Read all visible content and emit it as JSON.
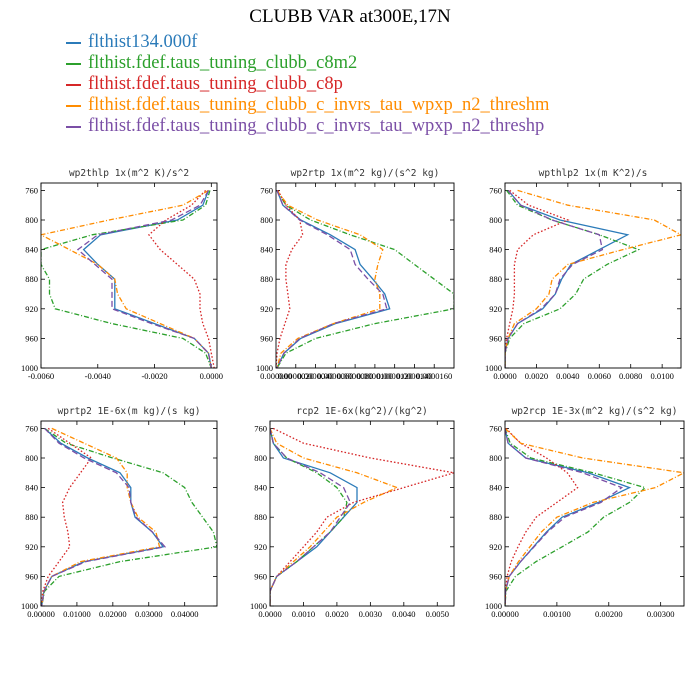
{
  "title": "CLUBB VAR at300E,17N",
  "colors": [
    "#2b7bb9",
    "#2ca02c",
    "#d62728",
    "#ff8c00",
    "#7b4fa6"
  ],
  "legend": [
    {
      "label": "flthist134.000f",
      "color": "#2b7bb9",
      "dash": ""
    },
    {
      "label": "flthist.fdef.taus_tuning_clubb_c8m2",
      "color": "#2ca02c",
      "dash": "5,2,1,2"
    },
    {
      "label": "flthist.fdef.taus_tuning_clubb_c8p",
      "color": "#d62728",
      "dash": "1.6,2"
    },
    {
      "label": "flthist.fdef.taus_tuning_clubb_c_invrs_tau_wpxp_n2_threshm",
      "color": "#ff8c00",
      "dash": "5,2,1,2"
    },
    {
      "label": "flthist.fdef.taus_tuning_clubb_c_invrs_tau_wpxp_n2_threshp",
      "color": "#7b4fa6",
      "dash": "6,3"
    }
  ],
  "chart_data": [
    {
      "type": "line",
      "title": "wp2thlp  1x(m^2 K)/s^2",
      "xlim": [
        -0.006,
        0.0002
      ],
      "xticks": [
        -0.006,
        -0.004,
        -0.002,
        0.0
      ],
      "xtick_labels": [
        "-0.0060",
        "-0.0040",
        "-0.0020",
        "0.0000"
      ],
      "ylim": [
        1000,
        750
      ],
      "yticks": [
        760,
        800,
        840,
        880,
        920,
        960,
        1000
      ],
      "y": [
        760,
        780,
        800,
        820,
        840,
        860,
        880,
        900,
        920,
        940,
        960,
        980,
        1000
      ],
      "series": [
        {
          "values": [
            -0.0001,
            -0.0003,
            -0.0012,
            -0.0039,
            -0.0045,
            -0.004,
            -0.0034,
            -0.0034,
            -0.0034,
            -0.002,
            -0.0006,
            -0.0001,
            0.0
          ]
        },
        {
          "values": [
            -5e-05,
            -0.0002,
            -0.001,
            -0.0042,
            -0.006,
            -0.006,
            -0.0057,
            -0.0057,
            -0.0055,
            -0.0035,
            -0.001,
            -0.0002,
            0.0
          ]
        },
        {
          "values": [
            -0.0002,
            -0.0007,
            -0.0016,
            -0.0022,
            -0.0018,
            -0.0012,
            -0.0006,
            -0.0004,
            -0.0004,
            -0.0003,
            -0.0001,
            0.0,
            0.0001
          ]
        },
        {
          "values": [
            -0.0001,
            -0.001,
            -0.0036,
            -0.006,
            -0.005,
            -0.004,
            -0.0034,
            -0.0033,
            -0.003,
            -0.0018,
            -0.0006,
            -0.0001,
            0.0
          ]
        },
        {
          "values": [
            -0.0001,
            -0.0004,
            -0.0014,
            -0.004,
            -0.0047,
            -0.0041,
            -0.0035,
            -0.0035,
            -0.0035,
            -0.0021,
            -0.0006,
            -0.0001,
            0.0
          ]
        }
      ]
    },
    {
      "type": "line",
      "title": "wp2rtp  1x(m^2 kg)/(s^2 kg)",
      "xlim": [
        0,
        1.8e-05
      ],
      "xticks": [
        0,
        2e-06,
        4e-06,
        6e-06,
        8e-06,
        1e-05,
        1.2e-05,
        1.4e-05,
        1.6e-05
      ],
      "xtick_labels": [
        "0.000000",
        "0.0000020",
        "0.0000040",
        "0.0000060",
        "0.0000080",
        "0.0000100",
        "0.0000120",
        "0.0000140",
        "0.0000160"
      ],
      "ylim": [
        1000,
        750
      ],
      "yticks": [
        760,
        800,
        840,
        880,
        920,
        960,
        1000
      ],
      "y": [
        760,
        780,
        800,
        820,
        840,
        860,
        880,
        900,
        920,
        940,
        960,
        980,
        1000
      ],
      "series": [
        {
          "values": [
            1e-07,
            7e-07,
            2.5e-06,
            5.5e-06,
            8e-06,
            8.5e-06,
            9.8e-06,
            1.1e-05,
            1.15e-05,
            6e-06,
            2.5e-06,
            8e-07,
            1e-07
          ]
        },
        {
          "values": [
            1e-07,
            1e-06,
            3.5e-06,
            7.5e-06,
            1.2e-05,
            1.4e-05,
            1.6e-05,
            1.8e-05,
            1.8e-05,
            1e-05,
            4e-06,
            1e-06,
            1e-07
          ]
        },
        {
          "values": [
            2e-07,
            1e-06,
            2.4e-06,
            2.7e-06,
            1.6e-06,
            1e-06,
            1e-06,
            1.2e-06,
            1.4e-06,
            9e-07,
            4e-07,
            1e-07,
            0.0
          ]
        },
        {
          "values": [
            1e-07,
            1.2e-06,
            4.2e-06,
            8.5e-06,
            1.08e-05,
            1.03e-05,
            1e-05,
            1.05e-05,
            1.05e-05,
            5.8e-06,
            2.2e-06,
            5e-07,
            1e-07
          ]
        },
        {
          "values": [
            1e-07,
            7e-07,
            2.4e-06,
            5.2e-06,
            7.5e-06,
            8e-06,
            9.3e-06,
            1.08e-05,
            1.12e-05,
            5.8e-06,
            2.4e-06,
            8e-07,
            1e-07
          ]
        }
      ]
    },
    {
      "type": "line",
      "title": "wpthlp2  1x(m K^2)/s",
      "xlim": [
        0,
        0.0112
      ],
      "xticks": [
        0,
        0.002,
        0.004,
        0.006,
        0.008,
        0.01
      ],
      "xtick_labels": [
        "0.0000",
        "0.0020",
        "0.0040",
        "0.0060",
        "0.0080",
        "0.0100"
      ],
      "ylim": [
        1000,
        750
      ],
      "yticks": [
        760,
        800,
        840,
        880,
        920,
        960,
        1000
      ],
      "y": [
        760,
        780,
        800,
        820,
        840,
        860,
        880,
        900,
        920,
        940,
        960,
        980,
        1000
      ],
      "series": [
        {
          "values": [
            0.0002,
            0.001,
            0.0035,
            0.0078,
            0.006,
            0.0042,
            0.0036,
            0.0032,
            0.0024,
            0.0008,
            0.0002,
            0.0,
            0.0
          ]
        },
        {
          "values": [
            0.0001,
            0.0008,
            0.003,
            0.006,
            0.0085,
            0.0065,
            0.005,
            0.0045,
            0.0035,
            0.0012,
            0.0003,
            0.0,
            0.0
          ]
        },
        {
          "values": [
            0.0003,
            0.0015,
            0.004,
            0.0018,
            0.0008,
            0.0006,
            0.0006,
            0.0006,
            0.0005,
            0.0003,
            0.0001,
            0.0,
            0.0
          ]
        },
        {
          "values": [
            0.0008,
            0.004,
            0.0095,
            0.0112,
            0.0075,
            0.004,
            0.003,
            0.0028,
            0.002,
            0.0006,
            0.0002,
            0.0,
            0.0
          ]
        },
        {
          "values": [
            0.0002,
            0.001,
            0.003,
            0.006,
            0.0062,
            0.0043,
            0.0035,
            0.0032,
            0.0023,
            0.0008,
            0.0002,
            0.0,
            0.0
          ]
        }
      ]
    },
    {
      "type": "line",
      "title": "wprtp2  1E-6x(m kg)/(s kg)",
      "xlim": [
        0,
        0.049
      ],
      "xticks": [
        0,
        0.01,
        0.02,
        0.03,
        0.04
      ],
      "xtick_labels": [
        "0.00000",
        "0.01000",
        "0.02000",
        "0.03000",
        "0.04000"
      ],
      "ylim": [
        1000,
        750
      ],
      "yticks": [
        760,
        800,
        840,
        880,
        920,
        960,
        1000
      ],
      "y": [
        760,
        780,
        800,
        820,
        840,
        860,
        880,
        900,
        920,
        940,
        960,
        980,
        1000
      ],
      "series": [
        {
          "values": [
            0.001,
            0.0055,
            0.013,
            0.022,
            0.025,
            0.025,
            0.0262,
            0.031,
            0.034,
            0.012,
            0.003,
            0.0008,
            0.0002
          ]
        },
        {
          "values": [
            0.001,
            0.007,
            0.02,
            0.034,
            0.04,
            0.042,
            0.045,
            0.048,
            0.049,
            0.022,
            0.005,
            0.001,
            0.0002
          ]
        },
        {
          "values": [
            0.002,
            0.008,
            0.014,
            0.011,
            0.008,
            0.006,
            0.0065,
            0.0075,
            0.008,
            0.005,
            0.002,
            0.0005,
            0.0001
          ]
        },
        {
          "values": [
            0.003,
            0.012,
            0.021,
            0.024,
            0.024,
            0.025,
            0.027,
            0.032,
            0.033,
            0.011,
            0.003,
            0.0008,
            0.0002
          ]
        },
        {
          "values": [
            0.001,
            0.005,
            0.012,
            0.021,
            0.0245,
            0.025,
            0.0265,
            0.031,
            0.0345,
            0.0125,
            0.003,
            0.0008,
            0.0002
          ]
        }
      ]
    },
    {
      "type": "line",
      "title": "rcp2  1E-6x(kg^2)/(kg^2)",
      "xlim": [
        0,
        0.0055
      ],
      "xticks": [
        0,
        0.001,
        0.002,
        0.003,
        0.004,
        0.005
      ],
      "xtick_labels": [
        "0.0000",
        "0.0010",
        "0.0020",
        "0.0030",
        "0.0040",
        "0.0050"
      ],
      "ylim": [
        1000,
        750
      ],
      "yticks": [
        760,
        800,
        840,
        880,
        920,
        960,
        1000
      ],
      "y": [
        760,
        780,
        800,
        820,
        840,
        860,
        880,
        900,
        920,
        940,
        960,
        980,
        1000
      ],
      "series": [
        {
          "values": [
            0.0,
            0.0001,
            0.0004,
            0.0018,
            0.0026,
            0.0026,
            0.0022,
            0.0018,
            0.0014,
            0.0008,
            0.0002,
            0.0,
            0.0
          ]
        },
        {
          "values": [
            0.0,
            0.0001,
            0.0005,
            0.0014,
            0.002,
            0.0023,
            0.0022,
            0.0018,
            0.0013,
            0.0008,
            0.0002,
            0.0,
            0.0
          ]
        },
        {
          "values": [
            0.0001,
            0.001,
            0.003,
            0.0055,
            0.004,
            0.0025,
            0.0017,
            0.0014,
            0.001,
            0.0006,
            0.0002,
            0.0,
            0.0
          ]
        },
        {
          "values": [
            0.0,
            0.0002,
            0.001,
            0.0026,
            0.0038,
            0.0028,
            0.002,
            0.0016,
            0.0012,
            0.0007,
            0.0002,
            0.0,
            0.0
          ]
        },
        {
          "values": [
            0.0,
            0.0001,
            0.0005,
            0.0015,
            0.0022,
            0.0024,
            0.0021,
            0.0018,
            0.0013,
            0.0008,
            0.0002,
            0.0,
            0.0
          ]
        }
      ]
    },
    {
      "type": "line",
      "title": "wp2rcp  1E-3x(m^2 kg)/(s^2 kg)",
      "xlim": [
        0,
        0.00345
      ],
      "xticks": [
        0,
        0.001,
        0.002,
        0.003
      ],
      "xtick_labels": [
        "0.00000",
        "0.00100",
        "0.00200",
        "0.00300"
      ],
      "ylim": [
        1000,
        750
      ],
      "yticks": [
        760,
        800,
        840,
        880,
        920,
        960,
        1000
      ],
      "y": [
        760,
        780,
        800,
        820,
        840,
        860,
        880,
        900,
        920,
        940,
        960,
        980,
        1000
      ],
      "series": [
        {
          "values": [
            0.0,
            6e-05,
            0.0004,
            0.0016,
            0.0024,
            0.0018,
            0.0011,
            0.0008,
            0.00055,
            0.0003,
            8e-05,
            1e-05,
            0.0
          ]
        },
        {
          "values": [
            0.0,
            0.0001,
            0.0005,
            0.0017,
            0.0027,
            0.0024,
            0.0019,
            0.0016,
            0.0011,
            0.0006,
            0.0002,
            2e-05,
            0.0
          ]
        },
        {
          "values": [
            2e-05,
            0.0003,
            0.0008,
            0.0012,
            0.0014,
            0.001,
            0.0006,
            0.0004,
            0.00025,
            0.00012,
            4e-05,
            1e-05,
            0.0
          ]
        },
        {
          "values": [
            0.0,
            0.0003,
            0.0015,
            0.00345,
            0.0029,
            0.0017,
            0.001,
            0.0007,
            0.00048,
            0.00026,
            8e-05,
            1e-05,
            0.0
          ]
        },
        {
          "values": [
            0.0,
            6e-05,
            0.0004,
            0.0015,
            0.00225,
            0.00185,
            0.00115,
            0.00082,
            0.00056,
            0.0003,
            8e-05,
            1e-05,
            0.0
          ]
        }
      ]
    }
  ]
}
